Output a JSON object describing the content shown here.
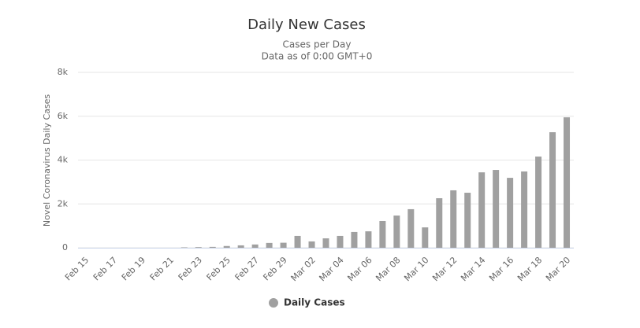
{
  "chart_data": {
    "type": "bar",
    "title": "Daily New Cases",
    "subtitle": [
      "Cases per Day",
      "Data as of 0:00 GMT+0"
    ],
    "ylabel": "Novel Coronavirus Daily Cases",
    "categories": [
      "Feb 15",
      null,
      "Feb 17",
      null,
      "Feb 19",
      null,
      "Feb 21",
      null,
      "Feb 23",
      null,
      "Feb 25",
      null,
      "Feb 27",
      null,
      "Feb 29",
      null,
      "Mar 02",
      null,
      "Mar 04",
      null,
      "Mar 06",
      null,
      "Mar 08",
      null,
      "Mar 10",
      null,
      "Mar 12",
      null,
      "Mar 14",
      null,
      "Mar 16",
      null,
      "Mar 18",
      null,
      "Mar 20"
    ],
    "series": [
      {
        "name": "Daily Cases",
        "color": "#a0a0a0",
        "values": [
          0,
          0,
          0,
          0,
          0,
          0,
          0,
          20,
          30,
          40,
          80,
          110,
          150,
          220,
          230,
          540,
          290,
          430,
          540,
          720,
          750,
          1220,
          1470,
          1760,
          930,
          2260,
          2620,
          2510,
          3440,
          3550,
          3190,
          3480,
          4160,
          5270,
          5950
        ]
      }
    ],
    "ylim": [
      0,
      8000
    ],
    "yticks": [
      0,
      {
        "value": 2000,
        "label": "2k"
      },
      {
        "value": 4000,
        "label": "4k"
      },
      {
        "value": 6000,
        "label": "6k"
      },
      {
        "value": 8000,
        "label": "8k"
      }
    ],
    "grid": true,
    "legend": "bottom"
  }
}
